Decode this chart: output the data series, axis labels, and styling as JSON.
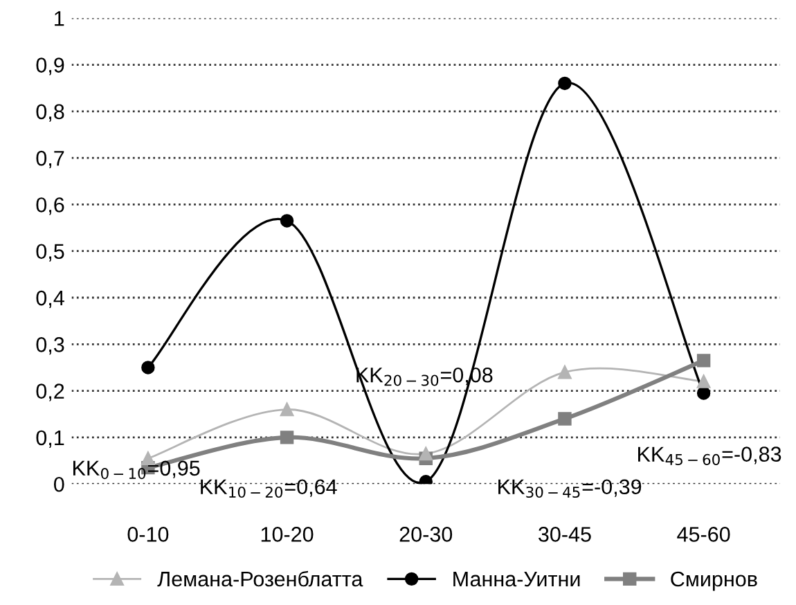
{
  "chart_data": {
    "type": "line",
    "categories": [
      "0-10",
      "10-20",
      "20-30",
      "30-45",
      "45-60"
    ],
    "series": [
      {
        "name": "Лемана-Розенблатта",
        "color": "#b4b4b4",
        "marker": "triangle",
        "values": [
          0.055,
          0.16,
          0.065,
          0.24,
          0.22
        ]
      },
      {
        "name": "Манна-Уитни",
        "color": "#000000",
        "marker": "circle",
        "values": [
          0.25,
          0.565,
          0.005,
          0.86,
          0.195
        ]
      },
      {
        "name": "Смирнов",
        "color": "#808080",
        "marker": "square",
        "values": [
          0.035,
          0.1,
          0.055,
          0.14,
          0.265
        ]
      }
    ],
    "ylim": [
      0,
      1
    ],
    "yticks": [
      0,
      {
        "value": 0.1,
        "label": "0,1"
      },
      {
        "value": 0.2,
        "label": "0,2"
      },
      {
        "value": 0.3,
        "label": "0,3"
      },
      {
        "value": 0.4,
        "label": "0,4"
      },
      {
        "value": 0.5,
        "label": "0,5"
      },
      {
        "value": 0.6,
        "label": "0,6"
      },
      {
        "value": 0.7,
        "label": "0,7"
      },
      {
        "value": 0.8,
        "label": "0,8"
      },
      {
        "value": 0.9,
        "label": "0,9"
      },
      1
    ],
    "grid": "y",
    "legend": "bottom",
    "line_style": "solid",
    "annotations": [
      "KK$_{0−10}$=0,95",
      "KK$_{10−20}$=0,64",
      "KK$_{20−30}$=0,08",
      "KK$_{30−45}$=-0,39",
      "KK$_{45−60}$=-0,83"
    ]
  }
}
